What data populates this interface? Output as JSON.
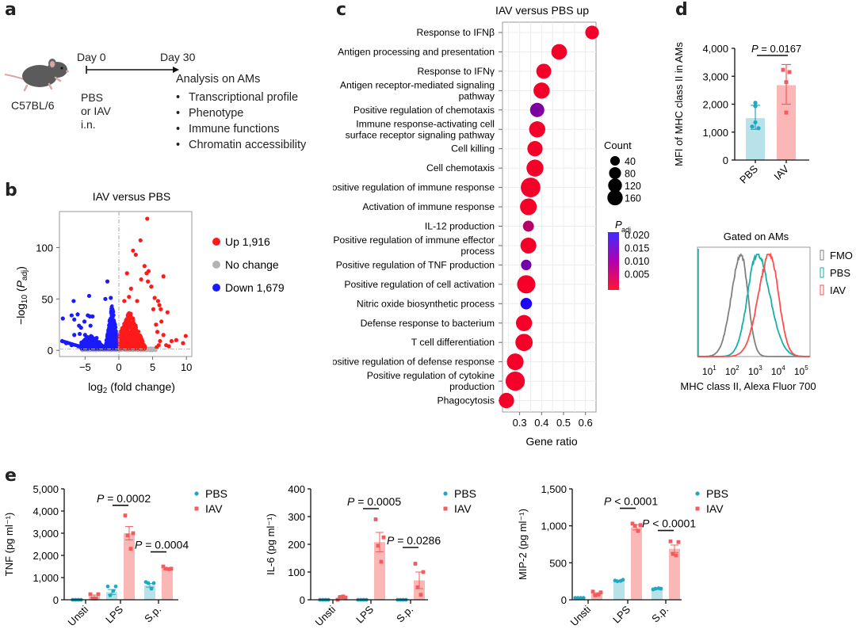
{
  "panel_labels": {
    "a": "a",
    "b": "b",
    "c": "c",
    "d": "d",
    "e": "e"
  },
  "panel_a": {
    "strain": "C57BL/6",
    "day_start": "Day 0",
    "day_end": "Day 30",
    "treatment_lines": [
      "PBS",
      "or IAV",
      "i.n."
    ],
    "analysis_title": "Analysis on AMs",
    "analysis_items": [
      "Transcriptional profile",
      "Phenotype",
      "Immune functions",
      "Chromatin accessibility"
    ]
  },
  "colors": {
    "up": "#ff1a1a",
    "down": "#1a1aff",
    "nochange": "#b3b3b3",
    "pbs": "#1fa8c4",
    "pbs_bar": "#b7e2ea",
    "iav": "#f25c5c",
    "iav_bar": "#fbb6b6",
    "fmo": "#808080",
    "pbs_hist": "#15b0a8",
    "iav_hist": "#ff4d4d"
  },
  "chart_data": [
    {
      "id": "b",
      "type": "scatter",
      "title": "IAV versus PBS",
      "xlabel": "log2 (fold change)",
      "ylabel": "-log10 (Padj)",
      "xlim": [
        -8.8,
        10.8
      ],
      "ylim": [
        -6,
        135
      ],
      "xticks": [
        -5,
        0,
        5,
        10
      ],
      "yticks": [
        0,
        50,
        100
      ],
      "legend": [
        {
          "name": "Up 1,916",
          "color_key": "up"
        },
        {
          "name": "No change",
          "color_key": "nochange"
        },
        {
          "name": "Down 1,679",
          "color_key": "down"
        }
      ],
      "highlight_points_up": [
        [
          4.2,
          128
        ],
        [
          3.2,
          107
        ],
        [
          2.1,
          97
        ],
        [
          2.5,
          93
        ],
        [
          3.8,
          82
        ],
        [
          4.4,
          77
        ],
        [
          4.1,
          75
        ],
        [
          1.2,
          75
        ],
        [
          6.6,
          72
        ],
        [
          3.3,
          69
        ],
        [
          4.3,
          67
        ],
        [
          4.8,
          62
        ],
        [
          1.8,
          60
        ],
        [
          7.2,
          37
        ],
        [
          9.9,
          14
        ],
        [
          9.5,
          7
        ],
        [
          8.5,
          10
        ],
        [
          7.8,
          9
        ],
        [
          7.4,
          4
        ],
        [
          7.0,
          5
        ],
        [
          5.3,
          51
        ],
        [
          5.8,
          48
        ],
        [
          6.0,
          44
        ],
        [
          6.2,
          40
        ],
        [
          5.1,
          40
        ],
        [
          1.5,
          52
        ],
        [
          2.7,
          48
        ],
        [
          0.8,
          48
        ],
        [
          5.5,
          25
        ],
        [
          6.3,
          28
        ],
        [
          5.7,
          18
        ],
        [
          6.6,
          15
        ],
        [
          6.1,
          9
        ],
        [
          5.9,
          5
        ],
        [
          5.6,
          3
        ]
      ],
      "highlight_points_down": [
        [
          -1.7,
          67
        ],
        [
          -4.4,
          53
        ],
        [
          -6.7,
          48
        ],
        [
          -2.0,
          50
        ],
        [
          -1.2,
          51
        ],
        [
          -8.3,
          31
        ],
        [
          -7.0,
          34
        ],
        [
          -6.1,
          35
        ],
        [
          -6.6,
          30
        ],
        [
          -4.6,
          34
        ],
        [
          -4.3,
          33
        ],
        [
          -3.9,
          33
        ],
        [
          -5.1,
          28
        ],
        [
          -5.9,
          24
        ],
        [
          -5.6,
          22
        ],
        [
          -4.2,
          24
        ],
        [
          -6.6,
          15
        ],
        [
          -5.8,
          16
        ],
        [
          -5.0,
          15
        ],
        [
          -3.3,
          12
        ],
        [
          -2.9,
          8
        ],
        [
          -8.4,
          9
        ],
        [
          -7.8,
          7
        ],
        [
          -7.0,
          5
        ],
        [
          -6.0,
          4
        ]
      ],
      "dense_regions": [
        {
          "color_key": "up",
          "x": [
            0.05,
            3.9
          ],
          "peak_x": 1.6,
          "max_y": 38
        },
        {
          "color_key": "down",
          "x": [
            -2.0,
            -0.05
          ],
          "peak_x": -1.0,
          "max_y": 45
        },
        {
          "color_key": "down",
          "x": [
            -5.6,
            -2.0
          ],
          "peak_x": -4.3,
          "max_y": 14
        },
        {
          "color_key": "nochange",
          "x": [
            -5.5,
            5.5
          ],
          "peak_x": 0,
          "max_y": 2
        }
      ]
    },
    {
      "id": "c",
      "type": "scatter",
      "title": "IAV versus PBS up",
      "xlabel": "Gene ratio",
      "xlim": [
        0.222,
        0.648
      ],
      "xticks": [
        0.3,
        0.4,
        0.5,
        0.6
      ],
      "size_legend_title": "Count",
      "size_legend": [
        40,
        80,
        120,
        160
      ],
      "color_legend_title": "P",
      "color_legend_sub": "adj",
      "color_legend_ticks": [
        "0.020",
        "0.015",
        "0.010",
        "0.005"
      ],
      "color_range": [
        0.0,
        0.021
      ],
      "terms": [
        {
          "label": [
            "Response to IFNβ"
          ],
          "ratio": 0.63,
          "count": 60,
          "padj": 0.001
        },
        {
          "label": [
            "Antigen processing and presentation"
          ],
          "ratio": 0.48,
          "count": 90,
          "padj": 0.001
        },
        {
          "label": [
            "Response to IFNγ"
          ],
          "ratio": 0.41,
          "count": 80,
          "padj": 0.001
        },
        {
          "label": [
            "Antigen receptor-mediated signaling",
            "pathway"
          ],
          "ratio": 0.4,
          "count": 100,
          "padj": 0.001
        },
        {
          "label": [
            "Positive regulation of chemotaxis"
          ],
          "ratio": 0.38,
          "count": 70,
          "padj": 0.012
        },
        {
          "label": [
            "Immune response-activating cell",
            "surface receptor signaling pathway"
          ],
          "ratio": 0.38,
          "count": 100,
          "padj": 0.001
        },
        {
          "label": [
            "Cell killing"
          ],
          "ratio": 0.37,
          "count": 85,
          "padj": 0.001
        },
        {
          "label": [
            "Cell chemotaxis"
          ],
          "ratio": 0.37,
          "count": 115,
          "padj": 0.001
        },
        {
          "label": [
            "Positive regulation of immune response"
          ],
          "ratio": 0.35,
          "count": 170,
          "padj": 0.001
        },
        {
          "label": [
            "Activation of immune response"
          ],
          "ratio": 0.34,
          "count": 110,
          "padj": 0.001
        },
        {
          "label": [
            "IL-12 production"
          ],
          "ratio": 0.34,
          "count": 30,
          "padj": 0.007
        },
        {
          "label": [
            "Positive regulation of immune effector",
            "process"
          ],
          "ratio": 0.34,
          "count": 95,
          "padj": 0.001
        },
        {
          "label": [
            "Positive regulation of TNF production"
          ],
          "ratio": 0.33,
          "count": 25,
          "padj": 0.013
        },
        {
          "label": [
            "Positive regulation of cell activation"
          ],
          "ratio": 0.33,
          "count": 140,
          "padj": 0.001
        },
        {
          "label": [
            "Nitric oxide biosynthetic process"
          ],
          "ratio": 0.33,
          "count": 35,
          "padj": 0.021
        },
        {
          "label": [
            "Defense response to bacterium"
          ],
          "ratio": 0.32,
          "count": 100,
          "padj": 0.001
        },
        {
          "label": [
            "T cell differentiation"
          ],
          "ratio": 0.32,
          "count": 120,
          "padj": 0.001
        },
        {
          "label": [
            "Positive regulation of defense response"
          ],
          "ratio": 0.28,
          "count": 110,
          "padj": 0.001
        },
        {
          "label": [
            "Positive regulation of cytokine",
            "production"
          ],
          "ratio": 0.28,
          "count": 160,
          "padj": 0.001
        },
        {
          "label": [
            "Phagocytosis"
          ],
          "ratio": 0.24,
          "count": 85,
          "padj": 0.001
        }
      ]
    },
    {
      "id": "d",
      "type": "bar",
      "ylabel": "MFI of MHC class II in AMs",
      "ylim": [
        0,
        4000
      ],
      "yticks": [
        0,
        1000,
        2000,
        3000,
        4000
      ],
      "ytick_labels": [
        "0",
        "1,000",
        "2,000",
        "3,000",
        "4,000"
      ],
      "categories": [
        "PBS",
        "IAV"
      ],
      "groups": [
        {
          "name": "PBS",
          "mean": 1500,
          "err_low": 1100,
          "err_high": 1960,
          "points": [
            2050,
            1930,
            1350,
            1200,
            1140
          ],
          "color_key": "pbs",
          "bar_key": "pbs_bar",
          "marker": "circle"
        },
        {
          "name": "IAV",
          "mean": 2680,
          "err_low": 2000,
          "err_high": 3420,
          "points": [
            3230,
            3150,
            2790,
            1700
          ],
          "color_key": "iav",
          "bar_key": "iav_bar",
          "marker": "square"
        }
      ],
      "annotation": {
        "p_italic": "P",
        "text": " = 0.0167",
        "between": [
          0,
          1
        ]
      }
    },
    {
      "id": "d-hist",
      "type": "line",
      "title": "Gated on AMs",
      "xlabel": "MHC class II, Alexa Fluor 700",
      "xscale": "log",
      "xlim_log10": [
        0.35,
        5.25
      ],
      "xticks": [
        {
          "base": "10",
          "exp": "1"
        },
        {
          "base": "10",
          "exp": "2"
        },
        {
          "base": "10",
          "exp": "3"
        },
        {
          "base": "10",
          "exp": "4"
        },
        {
          "base": "10",
          "exp": "5"
        }
      ],
      "ylim": [
        0,
        1.05
      ],
      "series": [
        {
          "name": "FMO",
          "color_key": "fmo",
          "peak_log10": 2.25,
          "sigma_left": 0.42,
          "sigma_right": 0.3
        },
        {
          "name": "PBS",
          "color_key": "pbs_hist",
          "peak_log10": 2.95,
          "sigma_left": 0.42,
          "sigma_right": 0.55
        },
        {
          "name": "IAV",
          "color_key": "iav_hist",
          "peak_log10": 3.5,
          "sigma_left": 0.5,
          "sigma_right": 0.38
        }
      ]
    },
    {
      "id": "e-tnf",
      "type": "bar",
      "ylabel": "TNF (pg ml⁻¹)",
      "ylim": [
        0,
        5000
      ],
      "yticks": [
        0,
        1000,
        2000,
        3000,
        4000,
        5000
      ],
      "ytick_labels": [
        "0",
        "1,000",
        "2,000",
        "3,000",
        "4,000",
        "5,000"
      ],
      "categories": [
        "Unsti",
        "LPS",
        "S.p."
      ],
      "series": [
        {
          "name": "PBS",
          "color_key": "pbs",
          "bar_key": "pbs_bar",
          "marker": "circle",
          "means": [
            0,
            350,
            650
          ],
          "sem": [
            0,
            110,
            80
          ],
          "points": [
            [
              0,
              0,
              0,
              0
            ],
            [
              600,
              600,
              200,
              400
            ],
            [
              800,
              750,
              750,
              500
            ]
          ]
        },
        {
          "name": "IAV",
          "color_key": "iav",
          "bar_key": "iav_bar",
          "marker": "square",
          "means": [
            150,
            3000,
            1400
          ],
          "sem": [
            60,
            300,
            30
          ],
          "points": [
            [
              250,
              250,
              60,
              60
            ],
            [
              3800,
              3000,
              2900,
              2300
            ],
            [
              1500,
              1400,
              1400,
              1380
            ]
          ]
        }
      ],
      "annotations": [
        {
          "category": 1,
          "p_italic": "P",
          "text": " = 0.0002",
          "y": 4400
        },
        {
          "category": 2,
          "p_italic": "P",
          "text": " = 0.0004",
          "y": 2300
        }
      ],
      "legend": [
        "PBS",
        "IAV"
      ]
    },
    {
      "id": "e-il6",
      "type": "bar",
      "ylabel": "IL-6 (pg ml⁻¹)",
      "ylim": [
        0,
        400
      ],
      "yticks": [
        0,
        100,
        200,
        300,
        400
      ],
      "ytick_labels": [
        "0",
        "100",
        "200",
        "300",
        "400"
      ],
      "categories": [
        "Unsti",
        "LPS",
        "S.p."
      ],
      "series": [
        {
          "name": "PBS",
          "color_key": "pbs",
          "bar_key": "pbs_bar",
          "marker": "circle",
          "means": [
            0,
            0,
            0
          ],
          "sem": [
            0,
            0,
            0
          ],
          "points": [
            [
              0,
              0,
              0,
              0
            ],
            [
              0,
              0,
              0,
              0
            ],
            [
              0,
              0,
              0,
              0
            ]
          ]
        },
        {
          "name": "IAV",
          "color_key": "iav",
          "bar_key": "iav_bar",
          "marker": "square",
          "means": [
            7,
            208,
            70
          ],
          "sem": [
            3,
            35,
            30
          ],
          "points": [
            [
              0,
              8,
              10,
              12
            ],
            [
              290,
              225,
              195,
              137
            ],
            [
              130,
              100,
              45,
              18
            ]
          ]
        }
      ],
      "annotations": [
        {
          "category": 1,
          "p_italic": "P",
          "text": " = 0.0005",
          "y": 340
        },
        {
          "category": 2,
          "p_italic": "P",
          "text": " = 0.0286",
          "y": 200
        }
      ],
      "legend": [
        "PBS",
        "IAV"
      ]
    },
    {
      "id": "e-mip2",
      "type": "bar",
      "ylabel": "MIP-2 (pg ml⁻¹)",
      "ylim": [
        0,
        1500
      ],
      "yticks": [
        0,
        500,
        1000,
        1500
      ],
      "ytick_labels": [
        "0",
        "500",
        "1,000",
        "1,500"
      ],
      "categories": [
        "Unsti",
        "LPS",
        "S.p."
      ],
      "series": [
        {
          "name": "PBS",
          "color_key": "pbs",
          "bar_key": "pbs_bar",
          "marker": "circle",
          "means": [
            25,
            255,
            150
          ],
          "sem": [
            2,
            5,
            4
          ],
          "points": [
            [
              25,
              25,
              25,
              25
            ],
            [
              260,
              270,
              250,
              255
            ],
            [
              140,
              150,
              150,
              155
            ]
          ]
        },
        {
          "name": "IAV",
          "color_key": "iav",
          "bar_key": "iav_bar",
          "marker": "square",
          "means": [
            80,
            980,
            690
          ],
          "sem": [
            15,
            35,
            50
          ],
          "points": [
            [
              110,
              100,
              60,
              70
            ],
            [
              1030,
              1010,
              1000,
              930
            ],
            [
              790,
              780,
              620,
              600
            ]
          ]
        }
      ],
      "annotations": [
        {
          "category": 1,
          "p_italic": "P",
          "text": " < 0.0001",
          "y": 1280
        },
        {
          "category": 2,
          "p_italic": "P",
          "text": " < 0.0001",
          "y": 980
        }
      ],
      "legend": [
        "PBS",
        "IAV"
      ]
    }
  ]
}
